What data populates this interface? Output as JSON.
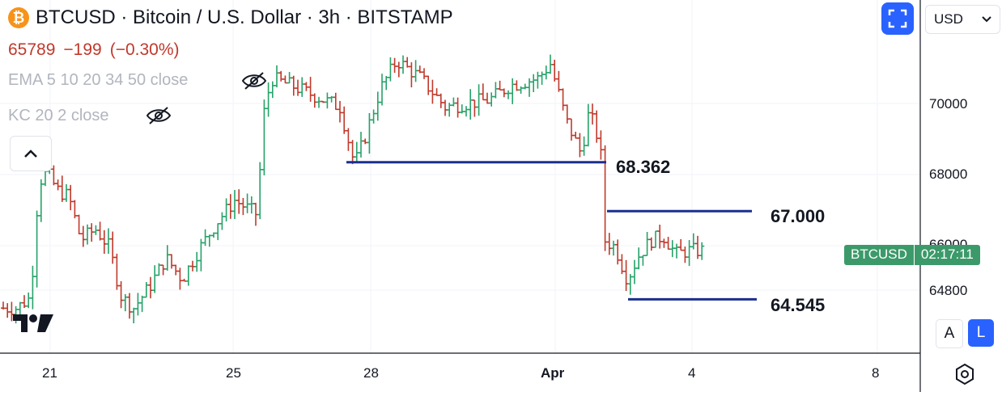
{
  "header": {
    "symbol_title": "BTCUSD · Bitcoin / U.S. Dollar · 3h · BITSTAMP",
    "coin_icon": "bitcoin-icon",
    "last_price": "65789",
    "change": "−199",
    "change_pct": "(−0.30%)"
  },
  "indicators": [
    {
      "label": "EMA 5 10 20 34 50 close",
      "icon": "eye-hidden-icon"
    },
    {
      "label": "KC 20 2 close",
      "icon": "eye-hidden-icon"
    }
  ],
  "controls": {
    "currency": "USD",
    "scale_auto": "A",
    "scale_log": "L"
  },
  "badge": {
    "ticker": "BTCUSD",
    "countdown": "02:17:11"
  },
  "price_axis": [
    "70000",
    "68000",
    "66000",
    "64800"
  ],
  "time_axis": [
    "21",
    "25",
    "28",
    "Apr",
    "4",
    "8"
  ],
  "levels": [
    {
      "label": "68.362",
      "price": 68362
    },
    {
      "label": "67.000",
      "price": 67000
    },
    {
      "label": "64.545",
      "price": 64545
    }
  ],
  "colors": {
    "up": "#26a269",
    "down": "#c0392b",
    "level_line": "#1a2f8f",
    "accent": "#2962ff"
  }
}
